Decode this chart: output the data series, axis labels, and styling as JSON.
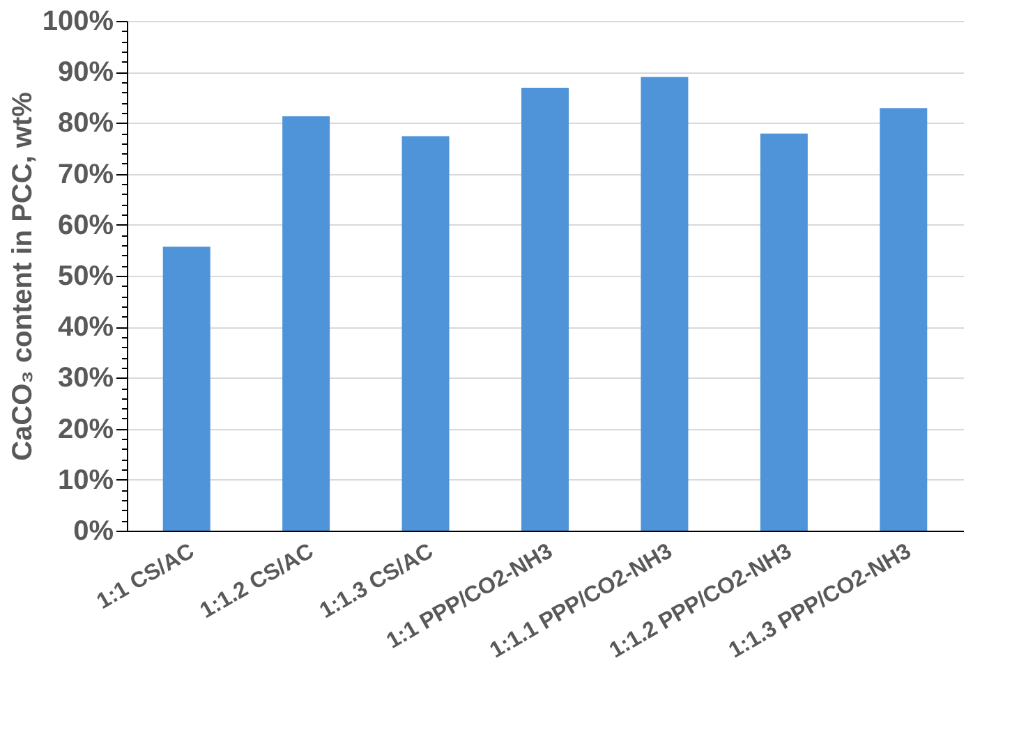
{
  "chart_data": {
    "type": "bar",
    "ylabel": "CaCO₃ content in PCC, wt%",
    "categories": [
      "1:1 CS/AC",
      "1:1.2 CS/AC",
      "1:1.3 CS/AC",
      "1:1 PPP/CO2-NH3",
      "1:1.1 PPP/CO2-NH3",
      "1:1.2 PPP/CO2-NH3",
      "1:1.3 PPP/CO2-NH3"
    ],
    "values": [
      55.7,
      81.3,
      77.4,
      86.9,
      89.0,
      77.9,
      82.9
    ],
    "color": "#4f94d8",
    "ylim": [
      0,
      100
    ],
    "yticks": [
      {
        "value": 0,
        "label": "0%"
      },
      {
        "value": 2,
        "label": null
      },
      {
        "value": 4,
        "label": null
      },
      {
        "value": 6,
        "label": null
      },
      {
        "value": 8,
        "label": null
      },
      {
        "value": 10,
        "label": "10%"
      },
      {
        "value": 12,
        "label": null
      },
      {
        "value": 14,
        "label": null
      },
      {
        "value": 16,
        "label": null
      },
      {
        "value": 18,
        "label": null
      },
      {
        "value": 20,
        "label": "20%"
      },
      {
        "value": 22,
        "label": null
      },
      {
        "value": 24,
        "label": null
      },
      {
        "value": 26,
        "label": null
      },
      {
        "value": 28,
        "label": null
      },
      {
        "value": 30,
        "label": "30%"
      },
      {
        "value": 32,
        "label": null
      },
      {
        "value": 34,
        "label": null
      },
      {
        "value": 36,
        "label": null
      },
      {
        "value": 38,
        "label": null
      },
      {
        "value": 40,
        "label": "40%"
      },
      {
        "value": 42,
        "label": null
      },
      {
        "value": 44,
        "label": null
      },
      {
        "value": 46,
        "label": null
      },
      {
        "value": 48,
        "label": null
      },
      {
        "value": 50,
        "label": "50%"
      },
      {
        "value": 52,
        "label": null
      },
      {
        "value": 54,
        "label": null
      },
      {
        "value": 56,
        "label": null
      },
      {
        "value": 58,
        "label": null
      },
      {
        "value": 60,
        "label": "60%"
      },
      {
        "value": 62,
        "label": null
      },
      {
        "value": 64,
        "label": null
      },
      {
        "value": 66,
        "label": null
      },
      {
        "value": 68,
        "label": null
      },
      {
        "value": 70,
        "label": "70%"
      },
      {
        "value": 72,
        "label": null
      },
      {
        "value": 74,
        "label": null
      },
      {
        "value": 76,
        "label": null
      },
      {
        "value": 78,
        "label": null
      },
      {
        "value": 80,
        "label": "80%"
      },
      {
        "value": 82,
        "label": null
      },
      {
        "value": 84,
        "label": null
      },
      {
        "value": 86,
        "label": null
      },
      {
        "value": 88,
        "label": null
      },
      {
        "value": 90,
        "label": "90%"
      },
      {
        "value": 92,
        "label": null
      },
      {
        "value": 94,
        "label": null
      },
      {
        "value": 96,
        "label": null
      },
      {
        "value": 98,
        "label": null
      },
      {
        "value": 100,
        "label": "100%"
      }
    ],
    "grid": "y"
  }
}
